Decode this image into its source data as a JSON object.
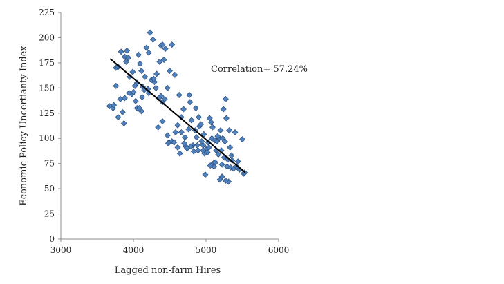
{
  "chart_data": {
    "type": "scatter",
    "title": "",
    "xlabel": "Lagged non-farm Hires",
    "ylabel": "Economic Policy Uncertianty Index",
    "xlim": [
      3000,
      6000
    ],
    "ylim": [
      0,
      225
    ],
    "xticks": [
      3000,
      4000,
      5000,
      6000
    ],
    "yticks": [
      0,
      25,
      50,
      75,
      100,
      125,
      150,
      175,
      200,
      225
    ],
    "grid": false,
    "legend": "none",
    "annotation": "Correlation= 57.24%",
    "marker_color": "#4f81bd",
    "marker_edge": "#2f4f7a",
    "trendline": {
      "x": [
        3680,
        5540
      ],
      "y": [
        179,
        66
      ],
      "color": "#000000"
    },
    "series": [
      {
        "values": [
          [
            3670,
            132
          ],
          [
            3720,
            130
          ],
          [
            3760,
            152
          ],
          [
            3790,
            121
          ],
          [
            3820,
            139
          ],
          [
            3850,
            126
          ],
          [
            3870,
            115
          ],
          [
            3880,
            140
          ],
          [
            3760,
            170
          ],
          [
            3790,
            171
          ],
          [
            3830,
            186
          ],
          [
            3880,
            181
          ],
          [
            3910,
            187
          ],
          [
            3930,
            180
          ],
          [
            3950,
            161
          ],
          [
            3980,
            144
          ],
          [
            4000,
            146
          ],
          [
            4030,
            137
          ],
          [
            4050,
            155
          ],
          [
            4070,
            183
          ],
          [
            4090,
            174
          ],
          [
            4110,
            167
          ],
          [
            4130,
            151
          ],
          [
            4150,
            148
          ],
          [
            4180,
            190
          ],
          [
            4210,
            185
          ],
          [
            4230,
            205
          ],
          [
            4250,
            158
          ],
          [
            4270,
            198
          ],
          [
            4290,
            156
          ],
          [
            4310,
            150
          ],
          [
            4320,
            164
          ],
          [
            4360,
            176
          ],
          [
            4380,
            192
          ],
          [
            4400,
            193
          ],
          [
            4420,
            178
          ],
          [
            4440,
            189
          ],
          [
            4470,
            150
          ],
          [
            4500,
            167
          ],
          [
            4530,
            193
          ],
          [
            4570,
            163
          ],
          [
            4050,
            130
          ],
          [
            4110,
            127
          ],
          [
            4210,
            145
          ],
          [
            4340,
            111
          ],
          [
            4380,
            142
          ],
          [
            4400,
            136
          ],
          [
            4430,
            139
          ],
          [
            4470,
            103
          ],
          [
            4490,
            96
          ],
          [
            4530,
            97
          ],
          [
            4580,
            106
          ],
          [
            4610,
            113
          ],
          [
            4630,
            143
          ],
          [
            4660,
            106
          ],
          [
            4660,
            121
          ],
          [
            4690,
            129
          ],
          [
            4710,
            101
          ],
          [
            4720,
            92
          ],
          [
            4740,
            90
          ],
          [
            4760,
            109
          ],
          [
            4770,
            143
          ],
          [
            4780,
            136
          ],
          [
            4800,
            118
          ],
          [
            4820,
            93
          ],
          [
            4830,
            87
          ],
          [
            4850,
            108
          ],
          [
            4860,
            130
          ],
          [
            4880,
            93
          ],
          [
            4890,
            88
          ],
          [
            4900,
            121
          ],
          [
            4910,
            112
          ],
          [
            4930,
            114
          ],
          [
            4940,
            97
          ],
          [
            4960,
            93
          ],
          [
            4970,
            104
          ],
          [
            4980,
            85
          ],
          [
            4990,
            64
          ],
          [
            5000,
            89
          ],
          [
            5020,
            86
          ],
          [
            5030,
            96
          ],
          [
            5040,
            91
          ],
          [
            5050,
            120
          ],
          [
            5070,
            116
          ],
          [
            5080,
            100
          ],
          [
            5090,
            111
          ],
          [
            5100,
            75
          ],
          [
            5110,
            72
          ],
          [
            5120,
            98
          ],
          [
            5130,
            76
          ],
          [
            5140,
            88
          ],
          [
            5150,
            97
          ],
          [
            5170,
            84
          ],
          [
            5180,
            100
          ],
          [
            5190,
            59
          ],
          [
            5200,
            108
          ],
          [
            5210,
            88
          ],
          [
            5220,
            62
          ],
          [
            5230,
            100
          ],
          [
            5240,
            129
          ],
          [
            5250,
            81
          ],
          [
            5260,
            97
          ],
          [
            5270,
            139
          ],
          [
            5280,
            120
          ],
          [
            5290,
            72
          ],
          [
            5300,
            79
          ],
          [
            5310,
            57
          ],
          [
            5320,
            108
          ],
          [
            5330,
            91
          ],
          [
            5340,
            71
          ],
          [
            5350,
            83
          ],
          [
            5360,
            78
          ],
          [
            5380,
            70
          ],
          [
            5400,
            106
          ],
          [
            5420,
            72
          ],
          [
            5440,
            77
          ],
          [
            5460,
            69
          ],
          [
            5500,
            99
          ],
          [
            5520,
            65
          ],
          [
            5530,
            66
          ],
          [
            5270,
            58
          ],
          [
            5220,
            74
          ],
          [
            5160,
            102
          ],
          [
            5060,
            73
          ],
          [
            4960,
            88
          ],
          [
            4870,
            101
          ],
          [
            4790,
            92
          ],
          [
            4700,
            95
          ],
          [
            4640,
            85
          ],
          [
            4610,
            91
          ],
          [
            4560,
            96
          ],
          [
            4480,
            95
          ],
          [
            4400,
            117
          ],
          [
            4350,
            140
          ],
          [
            4280,
            159
          ],
          [
            4200,
            149
          ],
          [
            4160,
            161
          ],
          [
            4120,
            141
          ],
          [
            4080,
            130
          ],
          [
            4020,
            152
          ],
          [
            3990,
            166
          ],
          [
            3940,
            145
          ],
          [
            3900,
            176
          ],
          [
            3730,
            133
          ]
        ]
      }
    ]
  }
}
